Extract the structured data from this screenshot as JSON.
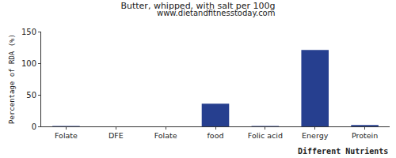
{
  "chart_data": {
    "type": "bar",
    "title": "Butter, whipped, with salt per 100g",
    "subtitle": "www.dietandfitnesstoday.com",
    "x_label": "Different Nutrients",
    "y_label": "Percentage of RDA (%)",
    "categories": [
      "Folate",
      "DFE",
      "Folate",
      "food",
      "Folic acid",
      "Energy",
      "Protein"
    ],
    "values": [
      0.75,
      0,
      0,
      36,
      0.75,
      121,
      2.3
    ],
    "color": "#263f8f",
    "ylim": [
      0,
      150
    ],
    "yticks": [
      0,
      50,
      100,
      150
    ],
    "grid": false
  }
}
